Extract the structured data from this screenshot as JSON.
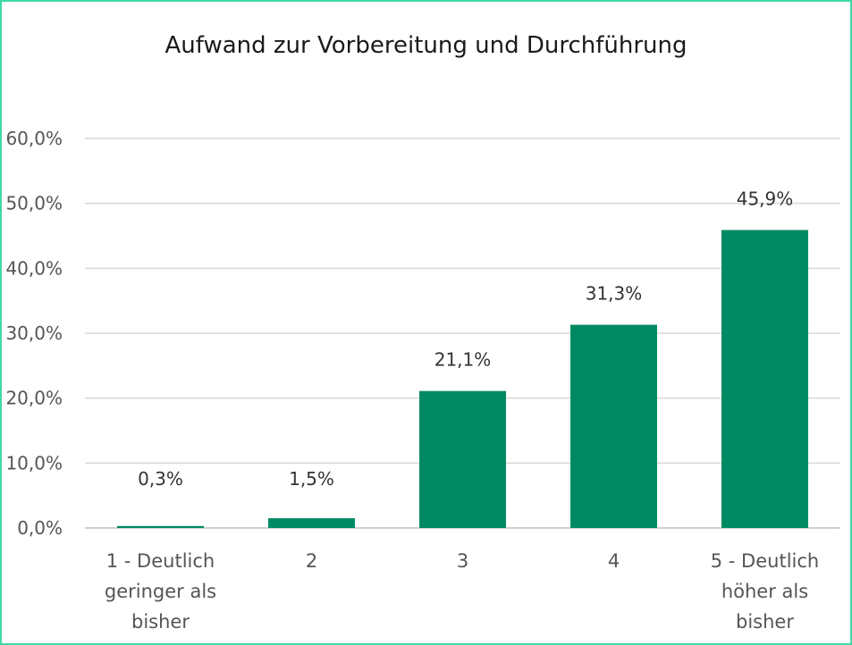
{
  "chart_data": {
    "type": "bar",
    "title": "Aufwand zur Vorbereitung und Durchführung",
    "xlabel": "",
    "ylabel": "",
    "categories": [
      [
        "1 - Deutlich",
        "geringer als",
        "bisher"
      ],
      [
        "2"
      ],
      [
        "3"
      ],
      [
        "4"
      ],
      [
        "5 - Deutlich",
        "höher als",
        "bisher"
      ]
    ],
    "values": [
      0.3,
      1.5,
      21.1,
      31.3,
      45.9
    ],
    "data_labels": [
      "0,3%",
      "1,5%",
      "21,1%",
      "31,3%",
      "45,9%"
    ],
    "y_ticks": [
      "0,0%",
      "10,0%",
      "20,0%",
      "30,0%",
      "40,0%",
      "50,0%",
      "60,0%"
    ],
    "ylim": [
      0,
      60
    ],
    "grid": true,
    "legend": "none",
    "bar_color": "#008a63",
    "border_color": "#3fd9a7"
  }
}
